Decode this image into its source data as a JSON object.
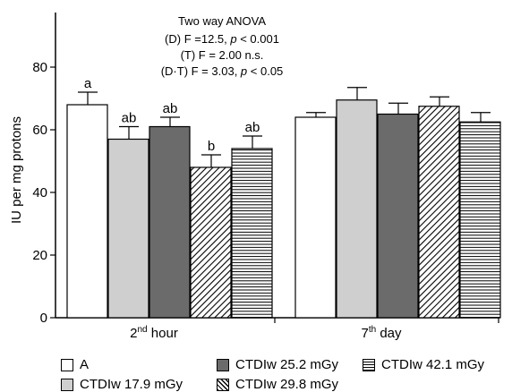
{
  "chart_data": {
    "type": "bar",
    "categories": [
      "2nd hour",
      "7th day"
    ],
    "category_labels": [
      {
        "main": "2",
        "sup": "nd",
        "rest": " hour"
      },
      {
        "main": "7",
        "sup": "th",
        "rest": " day"
      }
    ],
    "ylabel": "IU per mg protons",
    "ylim": [
      0,
      100
    ],
    "yticks": [
      0,
      20,
      40,
      60,
      80
    ],
    "grid": false,
    "legend_position": "bottom",
    "series": [
      {
        "name": "A",
        "pattern": "white",
        "values": [
          68,
          64
        ],
        "errors": [
          4,
          1.5
        ],
        "letters": [
          "a",
          ""
        ]
      },
      {
        "name": "CTDIw 17.9 mGy",
        "pattern": "lightgray",
        "values": [
          57,
          69.5
        ],
        "errors": [
          4,
          4
        ],
        "letters": [
          "ab",
          ""
        ]
      },
      {
        "name": "CTDIw 25.2 mGy",
        "pattern": "darkgray",
        "values": [
          61,
          65
        ],
        "errors": [
          3,
          3.5
        ],
        "letters": [
          "ab",
          ""
        ]
      },
      {
        "name": "CTDIw 29.8 mGy",
        "pattern": "diagonal",
        "values": [
          48,
          67.5
        ],
        "errors": [
          4,
          3
        ],
        "letters": [
          "b",
          ""
        ]
      },
      {
        "name": "CTDIw 42.1 mGy",
        "pattern": "horizontal",
        "values": [
          54,
          62.5
        ],
        "errors": [
          4,
          3
        ],
        "letters": [
          "ab",
          ""
        ]
      }
    ],
    "annotation": {
      "title": "Two way ANOVA",
      "lines": [
        {
          "pre": "(D) F =12.5, ",
          "italic": "p",
          "post": " < 0.001"
        },
        {
          "pre": "(T) F = 2.00 n.s.",
          "italic": "",
          "post": ""
        },
        {
          "pre": "(D·T) F = 3.03, ",
          "italic": "p",
          "post": " < 0.05"
        }
      ]
    },
    "colors": {
      "white": "#ffffff",
      "lightgray": "#cfcfcf",
      "darkgray": "#6b6b6b",
      "axis": "#000000"
    }
  }
}
